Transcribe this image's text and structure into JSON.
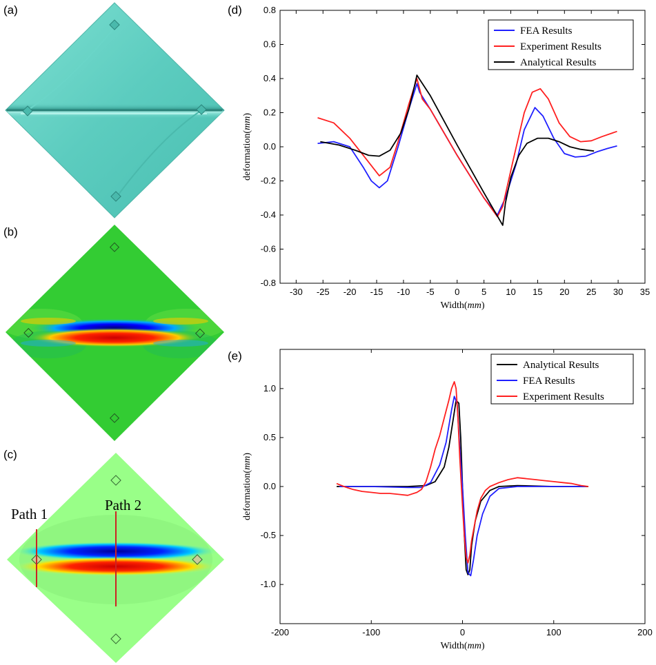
{
  "panels": {
    "a": {
      "letter": "(a)"
    },
    "b": {
      "letter": "(b)"
    },
    "c": {
      "letter": "(c)",
      "path1": "Path 1",
      "path2": "Path 2"
    },
    "d": {
      "letter": "(d)"
    },
    "e": {
      "letter": "(e)"
    }
  },
  "colors": {
    "fea": "#1f1fff",
    "experiment": "#ff1f1f",
    "analytical": "#000000",
    "plate_a": "#5fcfc0",
    "plate_b": "#33cc33",
    "plate_c": "#99ff88"
  },
  "chart_data": [
    {
      "id": "d",
      "type": "line",
      "title": "",
      "xlabel_prefix": "Width(",
      "xlabel_unit": "mm",
      "xlabel_suffix": ")",
      "ylabel_prefix": "deformation(",
      "ylabel_unit": "mm",
      "ylabel_suffix": ")",
      "xlim": [
        -33,
        35
      ],
      "ylim": [
        -0.8,
        0.8
      ],
      "xticks": [
        -30,
        -25,
        -20,
        -15,
        -10,
        -5,
        0,
        5,
        10,
        15,
        20,
        25,
        30,
        35
      ],
      "yticks": [
        -0.8,
        -0.6,
        -0.4,
        -0.2,
        0.0,
        0.2,
        0.4,
        0.6,
        0.8
      ],
      "ytick_labels": [
        "-0.8",
        "-0.6",
        "-0.4",
        "-0.2",
        "0.0",
        "0.2",
        "0.4",
        "0.6",
        "0.8"
      ],
      "grid": false,
      "legend_position": "top-right",
      "series": [
        {
          "name": "FEA Results",
          "color": "#1f1fff",
          "x": [
            -26,
            -23,
            -20,
            -17.5,
            -16,
            -14.5,
            -13,
            -11,
            -9,
            -7.5,
            -7,
            -5,
            0,
            5,
            7.5,
            9,
            11,
            12.5,
            14.5,
            16,
            18,
            20,
            22,
            24,
            26,
            28,
            29.8
          ],
          "y": [
            0.02,
            0.03,
            0.0,
            -0.12,
            -0.2,
            -0.24,
            -0.2,
            0.0,
            0.22,
            0.37,
            0.32,
            0.22,
            -0.05,
            -0.3,
            -0.4,
            -0.3,
            -0.1,
            0.1,
            0.23,
            0.18,
            0.05,
            -0.04,
            -0.06,
            -0.055,
            -0.03,
            -0.01,
            0.005
          ]
        },
        {
          "name": "Experiment Results",
          "color": "#ff1f1f",
          "x": [
            -26,
            -23,
            -20,
            -17,
            -14.5,
            -12.5,
            -11,
            -9,
            -7.5,
            -6.5,
            -5,
            0,
            5,
            7.5,
            8.5,
            10.5,
            12.5,
            14,
            15.5,
            17,
            19,
            21,
            23,
            25,
            27,
            29.8
          ],
          "y": [
            0.17,
            0.14,
            0.05,
            -0.07,
            -0.17,
            -0.12,
            0.03,
            0.25,
            0.4,
            0.28,
            0.22,
            -0.05,
            -0.3,
            -0.41,
            -0.35,
            -0.07,
            0.2,
            0.32,
            0.34,
            0.28,
            0.14,
            0.06,
            0.03,
            0.035,
            0.06,
            0.09
          ]
        },
        {
          "name": "Analytical Results",
          "color": "#000000",
          "x": [
            -25.5,
            -22,
            -19,
            -16.5,
            -14.5,
            -12.5,
            -10.5,
            -9,
            -8,
            -7.5,
            -5,
            0,
            5,
            8.5,
            9,
            10,
            11.5,
            13,
            15,
            17,
            19,
            21,
            23,
            25.5
          ],
          "y": [
            0.03,
            0.01,
            -0.02,
            -0.05,
            -0.055,
            -0.02,
            0.08,
            0.22,
            0.35,
            0.42,
            0.3,
            0.01,
            -0.27,
            -0.46,
            -0.33,
            -0.18,
            -0.05,
            0.02,
            0.05,
            0.05,
            0.03,
            0.0,
            -0.015,
            -0.025
          ]
        }
      ]
    },
    {
      "id": "e",
      "type": "line",
      "title": "",
      "xlabel_prefix": "Width(",
      "xlabel_unit": "mm",
      "xlabel_suffix": ")",
      "ylabel_prefix": "deformation(",
      "ylabel_unit": "mm",
      "ylabel_suffix": ")",
      "xlim": [
        -200,
        200
      ],
      "ylim": [
        -1.4,
        1.4
      ],
      "xticks": [
        -200,
        -100,
        0,
        100,
        200
      ],
      "yticks": [
        -1.0,
        -0.5,
        0.0,
        0.5,
        1.0
      ],
      "ytick_labels": [
        "-1.0",
        "-0.5",
        "0.0",
        "0.5",
        "1.0"
      ],
      "grid": false,
      "legend_position": "top-right",
      "series": [
        {
          "name": "Analytical Results",
          "color": "#000000",
          "x": [
            -138,
            -100,
            -60,
            -40,
            -30,
            -20,
            -15,
            -10,
            -7,
            -4,
            -2,
            0,
            2,
            4,
            6,
            8,
            10,
            14,
            20,
            30,
            40,
            60,
            100,
            138
          ],
          "y": [
            0.0,
            0.0,
            0.0,
            0.01,
            0.05,
            0.2,
            0.4,
            0.7,
            0.88,
            0.85,
            0.5,
            0.0,
            -0.5,
            -0.85,
            -0.9,
            -0.85,
            -0.6,
            -0.35,
            -0.15,
            -0.04,
            0.0,
            0.01,
            0.0,
            0.0
          ]
        },
        {
          "name": "FEA Results",
          "color": "#1f1fff",
          "x": [
            -135,
            -100,
            -60,
            -45,
            -35,
            -25,
            -18,
            -12,
            -9,
            -6,
            -3,
            0,
            3,
            6,
            9,
            12,
            16,
            22,
            30,
            40,
            60,
            100,
            135
          ],
          "y": [
            0.0,
            0.0,
            -0.01,
            -0.01,
            0.04,
            0.22,
            0.45,
            0.78,
            0.92,
            0.85,
            0.4,
            0.0,
            -0.5,
            -0.88,
            -0.91,
            -0.75,
            -0.5,
            -0.28,
            -0.1,
            -0.02,
            0.0,
            0.0,
            0.0
          ]
        },
        {
          "name": "Experiment Results",
          "color": "#ff1f1f",
          "x": [
            -138,
            -130,
            -120,
            -110,
            -100,
            -90,
            -80,
            -70,
            -60,
            -50,
            -45,
            -40,
            -35,
            -30,
            -25,
            -20,
            -15,
            -12,
            -9,
            -7,
            -5,
            -3,
            0,
            2,
            4,
            6,
            8,
            10,
            13,
            16,
            20,
            25,
            30,
            40,
            50,
            60,
            70,
            80,
            90,
            100,
            110,
            120,
            130,
            138
          ],
          "y": [
            0.03,
            0.0,
            -0.03,
            -0.05,
            -0.06,
            -0.07,
            -0.07,
            -0.08,
            -0.09,
            -0.06,
            -0.03,
            0.05,
            0.2,
            0.38,
            0.52,
            0.7,
            0.88,
            1.0,
            1.07,
            1.0,
            0.7,
            0.3,
            -0.2,
            -0.5,
            -0.72,
            -0.78,
            -0.7,
            -0.55,
            -0.4,
            -0.25,
            -0.12,
            -0.04,
            0.0,
            0.04,
            0.07,
            0.09,
            0.08,
            0.07,
            0.06,
            0.05,
            0.04,
            0.03,
            0.01,
            0.0
          ]
        }
      ]
    }
  ]
}
